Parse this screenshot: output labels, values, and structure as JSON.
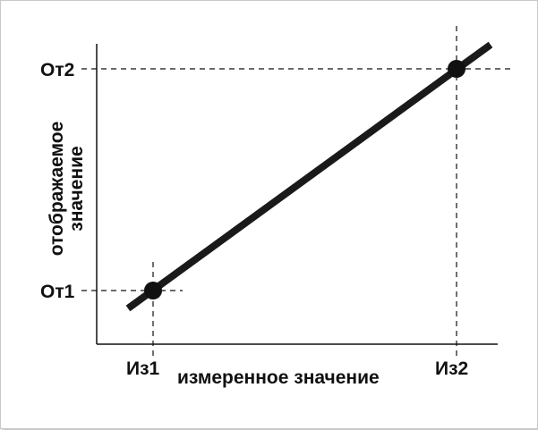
{
  "diagram": {
    "xlabel": "измеренное значение",
    "ylabel_line1": "отображаемое",
    "ylabel_line2": "значение",
    "x_ticks": [
      "Из1",
      "Из2"
    ],
    "y_ticks": [
      "От1",
      "От2"
    ],
    "colors": {
      "line": "#1a1a1a",
      "axis": "#111111",
      "guide": "#111111",
      "background": "#ffffff"
    }
  }
}
